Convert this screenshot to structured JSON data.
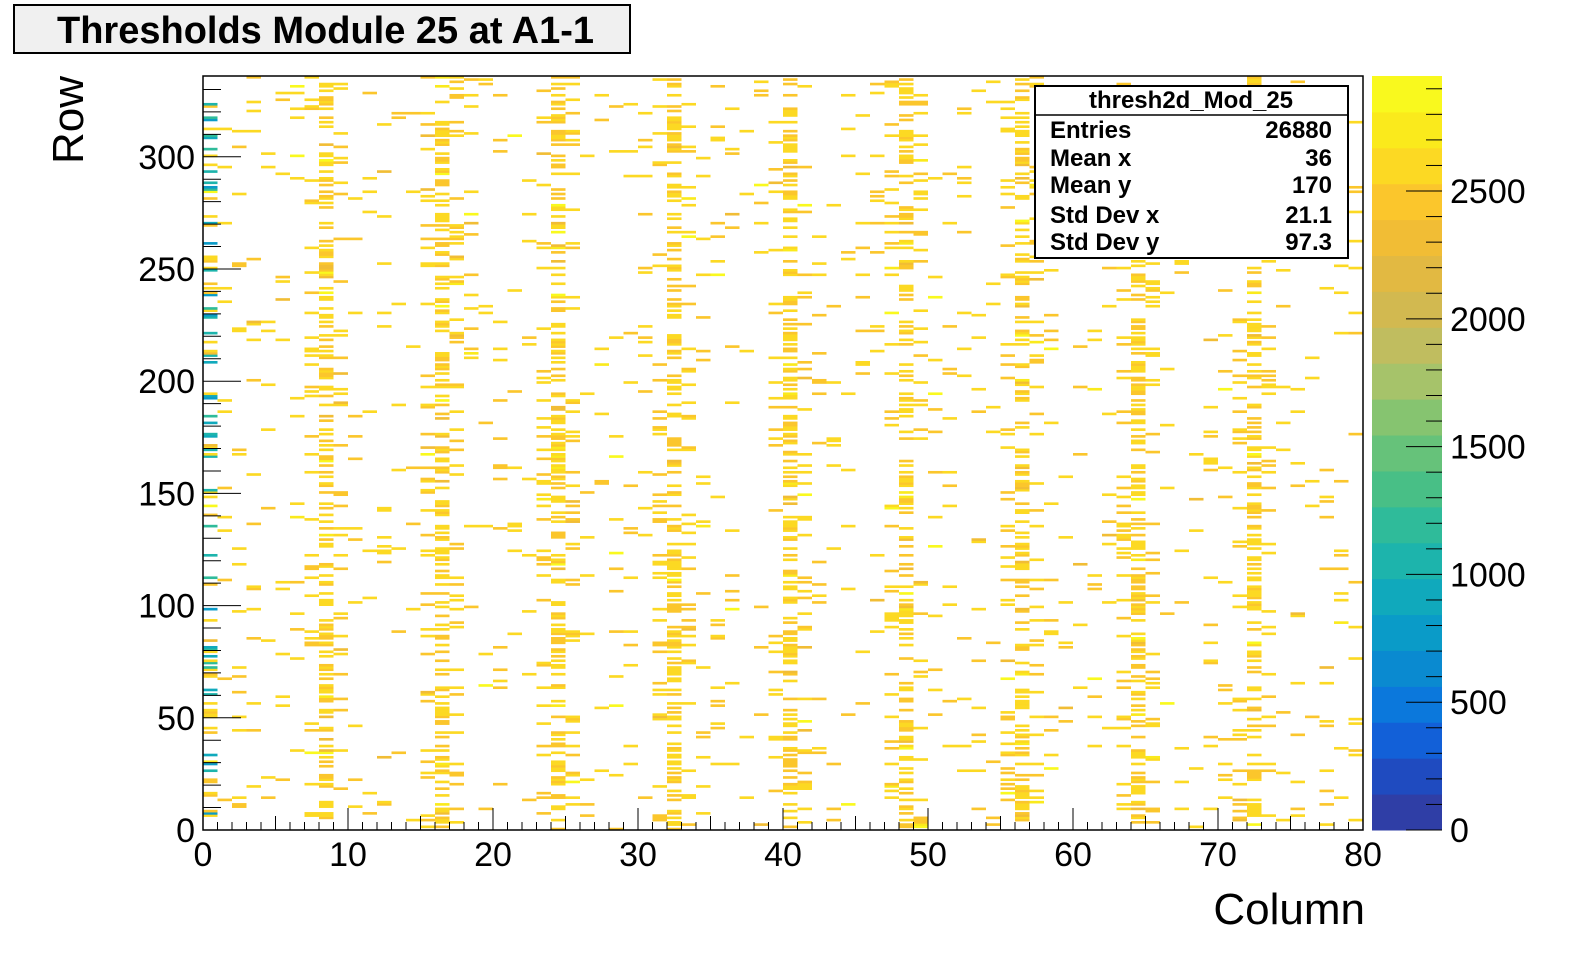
{
  "chart_data": {
    "type": "heatmap",
    "title": "Thresholds Module 25 at A1-1",
    "xlabel": "Column",
    "ylabel": "Row",
    "xlim": [
      0,
      80
    ],
    "ylim": [
      0,
      336
    ],
    "zlim": [
      0,
      2950
    ],
    "x_ticks": [
      "0",
      "10",
      "20",
      "30",
      "40",
      "50",
      "60",
      "70",
      "80"
    ],
    "y_ticks": [
      "0",
      "50",
      "100",
      "150",
      "200",
      "250",
      "300"
    ],
    "z_ticks": [
      "0",
      "500",
      "1000",
      "1500",
      "2000",
      "2500"
    ],
    "palette": [
      "#2f3ea6",
      "#1f4bc0",
      "#1260d8",
      "#0b78dc",
      "#0a8ad0",
      "#0a9bc8",
      "#10a9bc",
      "#1db4ac",
      "#2fbb9a",
      "#48bf86",
      "#66c27a",
      "#86c470",
      "#a6c36a",
      "#c0bd5f",
      "#d2b950",
      "#e2b942",
      "#f1bd35",
      "#fbc62c",
      "#fcd923",
      "#faea1c",
      "#f9f91e"
    ],
    "dominant_range": [
      2450,
      2650
    ],
    "high_density_columns": [
      8,
      16,
      24,
      32,
      40,
      48,
      56,
      64,
      72
    ],
    "blue_column": 0,
    "stats": {
      "name": "thresh2d_Mod_25",
      "rows": [
        {
          "label": "Entries",
          "value": "26880"
        },
        {
          "label": "Mean x",
          "value": "36"
        },
        {
          "label": "Mean y",
          "value": "170"
        },
        {
          "label": "Std Dev x",
          "value": "21.1"
        },
        {
          "label": "Std Dev y",
          "value": "97.3"
        }
      ]
    }
  }
}
